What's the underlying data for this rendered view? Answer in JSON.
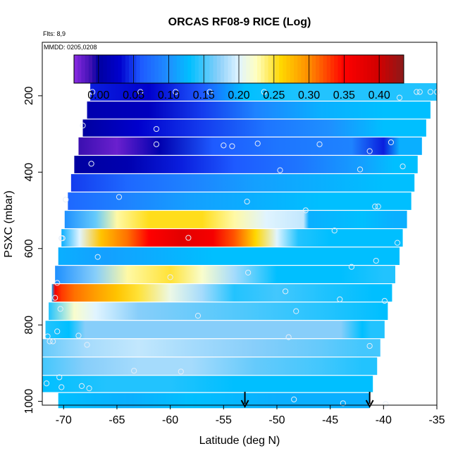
{
  "chart_data": {
    "type": "heatmap",
    "title": "ORCAS RF08-9 RICE (Log)",
    "annotations": [
      "Flts: 8,9",
      "MMDD: 0205,0208"
    ],
    "xlabel": "Latitude (deg N)",
    "ylabel": "PSXC (mbar)",
    "xlim": [
      -72,
      -35
    ],
    "ylim": [
      1010,
      60
    ],
    "y_reversed": true,
    "x_ticks": [
      -70,
      -65,
      -60,
      -55,
      -50,
      -45,
      -40,
      -35
    ],
    "x_tick_labels": [
      "-70",
      "-65",
      "-60",
      "-55",
      "-50",
      "-45",
      "-40",
      "-35"
    ],
    "y_ticks": [
      200,
      400,
      600,
      800,
      1000
    ],
    "y_tick_labels": [
      "200",
      "400",
      "600",
      "800",
      "1000"
    ],
    "colorbar": {
      "min": -0.035,
      "max": 0.435,
      "ticks": [
        0.0,
        0.05,
        0.1,
        0.15,
        0.2,
        0.25,
        0.3,
        0.35,
        0.4
      ],
      "tick_labels": [
        "0.00",
        "0.05",
        "0.10",
        "0.15",
        "0.20",
        "0.25",
        "0.30",
        "0.35",
        "0.40"
      ],
      "stops": [
        {
          "v": -0.035,
          "c": "#8a2be2"
        },
        {
          "v": -0.01,
          "c": "#3a0fb0"
        },
        {
          "v": 0.0,
          "c": "#0000a0"
        },
        {
          "v": 0.03,
          "c": "#0000cd"
        },
        {
          "v": 0.06,
          "c": "#1e5aff"
        },
        {
          "v": 0.1,
          "c": "#1e90ff"
        },
        {
          "v": 0.13,
          "c": "#00bfff"
        },
        {
          "v": 0.17,
          "c": "#87cefa"
        },
        {
          "v": 0.2,
          "c": "#e0f4ff"
        },
        {
          "v": 0.225,
          "c": "#ffffc0"
        },
        {
          "v": 0.26,
          "c": "#ffd700"
        },
        {
          "v": 0.3,
          "c": "#ff8c00"
        },
        {
          "v": 0.35,
          "c": "#ff0000"
        },
        {
          "v": 0.4,
          "c": "#d00000"
        },
        {
          "v": 0.435,
          "c": "#8b1a1a"
        }
      ]
    },
    "bands": [
      {
        "p": 190,
        "lat_min": -67.5,
        "lat_max": -35,
        "segments": [
          [
            -67.5,
            0.04
          ],
          [
            -62,
            0.03
          ],
          [
            -57,
            0.06
          ],
          [
            -53,
            0.13
          ],
          [
            -47,
            0.14
          ],
          [
            -40,
            0.14
          ]
        ]
      },
      {
        "p": 238,
        "lat_min": -67.8,
        "lat_max": -35.6,
        "segments": [
          [
            -67.8,
            0.01
          ],
          [
            -62,
            0.02
          ],
          [
            -57,
            0.05
          ],
          [
            -52,
            0.09
          ],
          [
            -46,
            0.12
          ],
          [
            -40,
            0.13
          ]
        ]
      },
      {
        "p": 284,
        "lat_min": -68.2,
        "lat_max": -36,
        "segments": [
          [
            -68.2,
            0.0
          ],
          [
            -63,
            0.03
          ],
          [
            -57,
            0.05
          ],
          [
            -51,
            0.08
          ],
          [
            -45,
            0.1
          ],
          [
            -40,
            0.13
          ]
        ]
      },
      {
        "p": 332,
        "lat_min": -68.6,
        "lat_max": -36.4,
        "segments": [
          [
            -68.6,
            -0.01
          ],
          [
            -65,
            -0.025
          ],
          [
            -61,
            0.01
          ],
          [
            -56,
            0.06
          ],
          [
            -50,
            0.08
          ],
          [
            -43,
            0.09
          ],
          [
            -40,
            0.04
          ],
          [
            -38.5,
            0.12
          ]
        ]
      },
      {
        "p": 380,
        "lat_min": -69,
        "lat_max": -36.8,
        "segments": [
          [
            -69,
            0.0
          ],
          [
            -64,
            0.01
          ],
          [
            -59,
            0.04
          ],
          [
            -54,
            0.06
          ],
          [
            -48,
            0.08
          ],
          [
            -42,
            0.11
          ],
          [
            -39,
            0.13
          ]
        ]
      },
      {
        "p": 428,
        "lat_min": -69.3,
        "lat_max": -37.1,
        "segments": [
          [
            -69.3,
            0.05
          ],
          [
            -64,
            0.07
          ],
          [
            -58,
            0.09
          ],
          [
            -52,
            0.11
          ],
          [
            -46,
            0.12
          ],
          [
            -40,
            0.13
          ]
        ]
      },
      {
        "p": 476,
        "lat_min": -69.6,
        "lat_max": -37.4,
        "segments": [
          [
            -69.6,
            0.07
          ],
          [
            -64,
            0.09
          ],
          [
            -58,
            0.11
          ],
          [
            -52,
            0.12
          ],
          [
            -46,
            0.13
          ],
          [
            -40,
            0.13
          ]
        ]
      },
      {
        "p": 524,
        "lat_min": -69.9,
        "lat_max": -37.8,
        "segments": [
          [
            -69.9,
            0.1
          ],
          [
            -67,
            0.16
          ],
          [
            -65,
            0.23
          ],
          [
            -62,
            0.255
          ],
          [
            -57,
            0.255
          ],
          [
            -54,
            0.23
          ],
          [
            -51,
            0.2
          ],
          [
            -47.5,
            0.19
          ],
          [
            -47,
            0.12
          ],
          [
            -42,
            0.13
          ],
          [
            -39,
            0.12
          ]
        ]
      },
      {
        "p": 572,
        "lat_min": -70.2,
        "lat_max": -38.2,
        "segments": [
          [
            -70.2,
            0.12
          ],
          [
            -68.5,
            0.2
          ],
          [
            -66.5,
            0.27
          ],
          [
            -64,
            0.31
          ],
          [
            -62,
            0.35
          ],
          [
            -59,
            0.38
          ],
          [
            -56,
            0.36
          ],
          [
            -54,
            0.32
          ],
          [
            -52,
            0.26
          ],
          [
            -50,
            0.2
          ],
          [
            -48,
            0.14
          ],
          [
            -45,
            0.13
          ],
          [
            -40,
            0.13
          ]
        ]
      },
      {
        "p": 620,
        "lat_min": -70.5,
        "lat_max": -38.5,
        "segments": [
          [
            -70.5,
            0.12
          ],
          [
            -66,
            0.11
          ],
          [
            -61,
            0.12
          ],
          [
            -56,
            0.13
          ],
          [
            -50,
            0.13
          ],
          [
            -45,
            0.13
          ],
          [
            -40,
            0.13
          ]
        ]
      },
      {
        "p": 668,
        "lat_min": -70.8,
        "lat_max": -38.9,
        "segments": [
          [
            -70.8,
            0.1
          ],
          [
            -67,
            0.17
          ],
          [
            -64,
            0.23
          ],
          [
            -60,
            0.25
          ],
          [
            -57,
            0.22
          ],
          [
            -54,
            0.18
          ],
          [
            -50,
            0.13
          ],
          [
            -44,
            0.13
          ],
          [
            -40,
            0.14
          ]
        ]
      },
      {
        "p": 716,
        "lat_min": -71.1,
        "lat_max": -39.2,
        "segments": [
          [
            -71.1,
            0.12
          ],
          [
            -70.8,
            0.36
          ],
          [
            -70.2,
            0.33
          ],
          [
            -69,
            0.31
          ],
          [
            -67,
            0.29
          ],
          [
            -65,
            0.27
          ],
          [
            -63,
            0.25
          ],
          [
            -60,
            0.21
          ],
          [
            -57,
            0.18
          ],
          [
            -54,
            0.14
          ],
          [
            -50,
            0.15
          ],
          [
            -46,
            0.14
          ],
          [
            -41,
            0.13
          ]
        ]
      },
      {
        "p": 764,
        "lat_min": -71.4,
        "lat_max": -39.6,
        "segments": [
          [
            -71.4,
            0.14
          ],
          [
            -69,
            0.22
          ],
          [
            -67,
            0.2
          ],
          [
            -63,
            0.17
          ],
          [
            -57,
            0.16
          ],
          [
            -51,
            0.15
          ],
          [
            -45,
            0.14
          ],
          [
            -40,
            0.13
          ]
        ]
      },
      {
        "p": 812,
        "lat_min": -71.7,
        "lat_max": -39.9,
        "segments": [
          [
            -71.7,
            0.14
          ],
          [
            -69.5,
            0.13
          ],
          [
            -68,
            0.17
          ],
          [
            -62,
            0.17
          ],
          [
            -56,
            0.17
          ],
          [
            -50,
            0.17
          ],
          [
            -44,
            0.17
          ],
          [
            -42,
            0.13
          ],
          [
            -41.2,
            0.14
          ]
        ]
      },
      {
        "p": 860,
        "lat_min": -72,
        "lat_max": -40.3,
        "segments": [
          [
            -72,
            0.16
          ],
          [
            -68,
            0.18
          ],
          [
            -63,
            0.19
          ],
          [
            -58,
            0.18
          ],
          [
            -52,
            0.17
          ],
          [
            -46,
            0.16
          ],
          [
            -42,
            0.15
          ]
        ]
      },
      {
        "p": 908,
        "lat_min": -72,
        "lat_max": -40.6,
        "segments": [
          [
            -72,
            0.15
          ],
          [
            -68,
            0.17
          ],
          [
            -63,
            0.18
          ],
          [
            -58,
            0.18
          ],
          [
            -52,
            0.16
          ],
          [
            -46,
            0.15
          ],
          [
            -42,
            0.14
          ]
        ]
      },
      {
        "p": 956,
        "lat_min": -72,
        "lat_max": -41,
        "segments": [
          [
            -72,
            0.13
          ],
          [
            -66,
            0.14
          ],
          [
            -60,
            0.14
          ],
          [
            -54,
            0.13
          ],
          [
            -48,
            0.13
          ],
          [
            -43,
            0.13
          ]
        ]
      },
      {
        "p": 998,
        "lat_min": -70.5,
        "lat_max": -41.3,
        "segments": [
          [
            -70.5,
            0.13
          ],
          [
            -64,
            0.12
          ],
          [
            -58,
            0.13
          ],
          [
            -50,
            0.12
          ],
          [
            -44,
            0.12
          ]
        ]
      }
    ],
    "obs_points": [
      {
        "x": -67.3,
        "y": 190
      },
      {
        "x": -62.8,
        "y": 190
      },
      {
        "x": -59.5,
        "y": 190
      },
      {
        "x": -56.3,
        "y": 190
      },
      {
        "x": -51.2,
        "y": 190
      },
      {
        "x": -38.5,
        "y": 205
      },
      {
        "x": -36.9,
        "y": 190
      },
      {
        "x": -36.6,
        "y": 190
      },
      {
        "x": -35.6,
        "y": 190
      },
      {
        "x": -35,
        "y": 190
      },
      {
        "x": -68.2,
        "y": 278
      },
      {
        "x": -61.3,
        "y": 287
      },
      {
        "x": -61.3,
        "y": 327
      },
      {
        "x": -55,
        "y": 330
      },
      {
        "x": -54.2,
        "y": 332
      },
      {
        "x": -51.8,
        "y": 325
      },
      {
        "x": -46,
        "y": 327
      },
      {
        "x": -41.3,
        "y": 345
      },
      {
        "x": -39.3,
        "y": 322
      },
      {
        "x": -67.4,
        "y": 378
      },
      {
        "x": -49.7,
        "y": 395
      },
      {
        "x": -42.2,
        "y": 393
      },
      {
        "x": -38.2,
        "y": 385
      },
      {
        "x": -64.8,
        "y": 465
      },
      {
        "x": -69.8,
        "y": 472
      },
      {
        "x": -52.8,
        "y": 477
      },
      {
        "x": -47.3,
        "y": 500
      },
      {
        "x": -40.8,
        "y": 490
      },
      {
        "x": -40.5,
        "y": 490
      },
      {
        "x": -70.2,
        "y": 573
      },
      {
        "x": -70.1,
        "y": 573
      },
      {
        "x": -58.3,
        "y": 572
      },
      {
        "x": -44.6,
        "y": 553
      },
      {
        "x": -38.7,
        "y": 585
      },
      {
        "x": -66.8,
        "y": 622
      },
      {
        "x": -43,
        "y": 648
      },
      {
        "x": -40.7,
        "y": 632
      },
      {
        "x": -70.6,
        "y": 690
      },
      {
        "x": -60,
        "y": 675
      },
      {
        "x": -52.7,
        "y": 663
      },
      {
        "x": -49.2,
        "y": 712
      },
      {
        "x": -44.1,
        "y": 733
      },
      {
        "x": -39.9,
        "y": 737
      },
      {
        "x": -70.8,
        "y": 729
      },
      {
        "x": -70.3,
        "y": 758
      },
      {
        "x": -57.4,
        "y": 776
      },
      {
        "x": -48.2,
        "y": 764
      },
      {
        "x": -70.6,
        "y": 817
      },
      {
        "x": -68.6,
        "y": 828
      },
      {
        "x": -71.5,
        "y": 830
      },
      {
        "x": -71.3,
        "y": 843
      },
      {
        "x": -71,
        "y": 843
      },
      {
        "x": -67.8,
        "y": 852
      },
      {
        "x": -48.9,
        "y": 832
      },
      {
        "x": -41.3,
        "y": 855
      },
      {
        "x": -63.4,
        "y": 920
      },
      {
        "x": -59,
        "y": 922
      },
      {
        "x": -70.4,
        "y": 937
      },
      {
        "x": -71.6,
        "y": 953
      },
      {
        "x": -70.2,
        "y": 963
      },
      {
        "x": -68.3,
        "y": 960
      },
      {
        "x": -67.6,
        "y": 966
      },
      {
        "x": -48.4,
        "y": 995
      },
      {
        "x": -43.8,
        "y": 1005
      },
      {
        "x": -39.8,
        "y": 1007
      }
    ],
    "arrows": [
      {
        "x": -53
      },
      {
        "x": -41.3
      }
    ]
  }
}
